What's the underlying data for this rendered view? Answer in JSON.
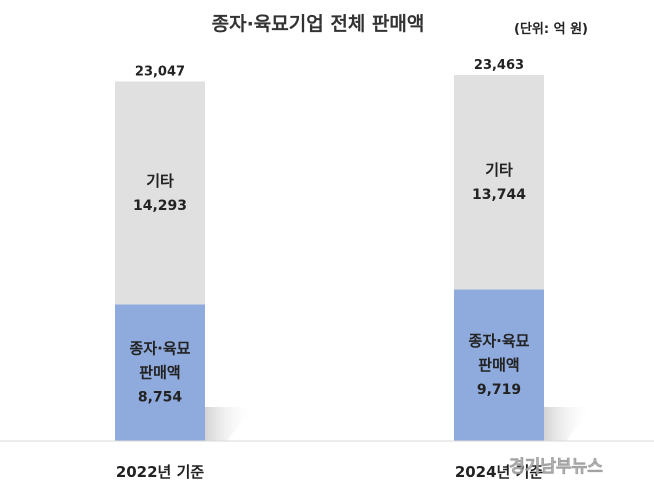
{
  "chart_data": {
    "type": "bar",
    "stacked": true,
    "title": "종자·육묘기업 전체 판매액",
    "unit_label": "(단위: 억 원)",
    "categories": [
      "2022년 기준",
      "2024년 기준"
    ],
    "totals": [
      "23,047",
      "23,463"
    ],
    "series": [
      {
        "name": "종자·육묘 판매액",
        "label_lines": [
          "종자·육묘",
          "판매액"
        ],
        "values": [
          8754,
          9719
        ],
        "value_labels": [
          "8,754",
          "9,719"
        ],
        "color": "#8faadc"
      },
      {
        "name": "기타",
        "label_lines": [
          "기타"
        ],
        "values": [
          14293,
          13744
        ],
        "value_labels": [
          "14,293",
          "13,744"
        ],
        "color": "#e0e0e0"
      }
    ],
    "legend": "none",
    "grid": false
  },
  "watermark": "경기남부뉴스"
}
